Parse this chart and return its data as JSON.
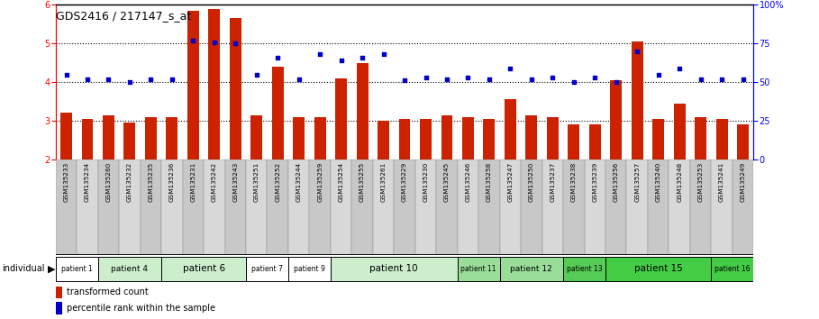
{
  "title": "GDS2416 / 217147_s_at",
  "samples": [
    "GSM135233",
    "GSM135234",
    "GSM135260",
    "GSM135232",
    "GSM135235",
    "GSM135236",
    "GSM135231",
    "GSM135242",
    "GSM135243",
    "GSM135251",
    "GSM135252",
    "GSM135244",
    "GSM135259",
    "GSM135254",
    "GSM135255",
    "GSM135261",
    "GSM135229",
    "GSM135230",
    "GSM135245",
    "GSM135246",
    "GSM135258",
    "GSM135247",
    "GSM135250",
    "GSM135237",
    "GSM135238",
    "GSM135239",
    "GSM135256",
    "GSM135257",
    "GSM135240",
    "GSM135248",
    "GSM135253",
    "GSM135241",
    "GSM135249"
  ],
  "bar_values": [
    3.2,
    3.05,
    3.15,
    2.95,
    3.1,
    3.1,
    5.85,
    5.9,
    5.65,
    3.15,
    4.4,
    3.1,
    3.1,
    4.1,
    4.5,
    3.0,
    3.05,
    3.05,
    3.15,
    3.1,
    3.05,
    3.55,
    3.15,
    3.1,
    2.9,
    2.9,
    4.05,
    5.05,
    3.05,
    3.45,
    3.1,
    3.05,
    2.9
  ],
  "percentile_values_pct": [
    55,
    52,
    52,
    50,
    52,
    52,
    77,
    76,
    75,
    55,
    66,
    52,
    68,
    64,
    66,
    68,
    51,
    53,
    52,
    53,
    52,
    59,
    52,
    53,
    50,
    53,
    50,
    70,
    55,
    59,
    52,
    52,
    52
  ],
  "patient_groups": [
    {
      "label": "patient 1",
      "start": 0,
      "end": 2,
      "color": "#ffffff"
    },
    {
      "label": "patient 4",
      "start": 2,
      "end": 5,
      "color": "#cceecc"
    },
    {
      "label": "patient 6",
      "start": 5,
      "end": 9,
      "color": "#cceecc"
    },
    {
      "label": "patient 7",
      "start": 9,
      "end": 11,
      "color": "#ffffff"
    },
    {
      "label": "patient 9",
      "start": 11,
      "end": 13,
      "color": "#ffffff"
    },
    {
      "label": "patient 10",
      "start": 13,
      "end": 19,
      "color": "#cceecc"
    },
    {
      "label": "patient 11",
      "start": 19,
      "end": 21,
      "color": "#99dd99"
    },
    {
      "label": "patient 12",
      "start": 21,
      "end": 24,
      "color": "#99dd99"
    },
    {
      "label": "patient 13",
      "start": 24,
      "end": 26,
      "color": "#55cc55"
    },
    {
      "label": "patient 15",
      "start": 26,
      "end": 31,
      "color": "#44cc44"
    },
    {
      "label": "patient 16",
      "start": 31,
      "end": 33,
      "color": "#44cc44"
    }
  ],
  "ylim_left": [
    2,
    6
  ],
  "ylim_right": [
    0,
    100
  ],
  "yticks_left": [
    2,
    3,
    4,
    5,
    6
  ],
  "yticks_right": [
    0,
    25,
    50,
    75,
    100
  ],
  "ytick_right_labels": [
    "0",
    "25",
    "50",
    "75",
    "100%"
  ],
  "bar_color": "#cc2200",
  "percentile_color": "#0000cc",
  "background_color": "#ffffff"
}
